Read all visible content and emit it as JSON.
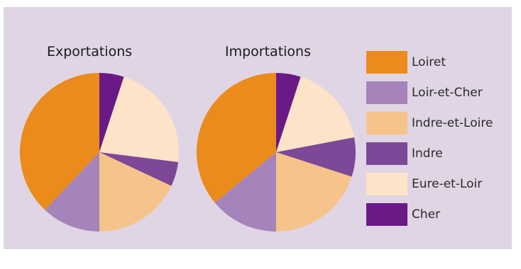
{
  "chart_data": [
    {
      "type": "pie",
      "title": "Exportations",
      "labels": [
        "Cher",
        "Eure-et-Loir",
        "Indre",
        "Indre-et-Loire",
        "Loir-et-Cher",
        "Loiret"
      ],
      "values": [
        5,
        22,
        5,
        18,
        12,
        38
      ]
    },
    {
      "type": "pie",
      "title": "Importations",
      "labels": [
        "Cher",
        "Eure-et-Loir",
        "Indre",
        "Indre-et-Loire",
        "Loir-et-Cher",
        "Loiret"
      ],
      "values": [
        5,
        17,
        8,
        20,
        14,
        36
      ]
    }
  ],
  "legend": {
    "placement": "right",
    "items": [
      {
        "label": "Loiret",
        "color": "#ea8b1c"
      },
      {
        "label": "Loir-et-Cher",
        "color": "#a583bb"
      },
      {
        "label": "Indre-et-Loire",
        "color": "#f6c48a"
      },
      {
        "label": "Indre",
        "color": "#7c4897"
      },
      {
        "label": "Eure-et-Loir",
        "color": "#fde3c7"
      },
      {
        "label": "Cher",
        "color": "#6a1a86"
      }
    ]
  }
}
